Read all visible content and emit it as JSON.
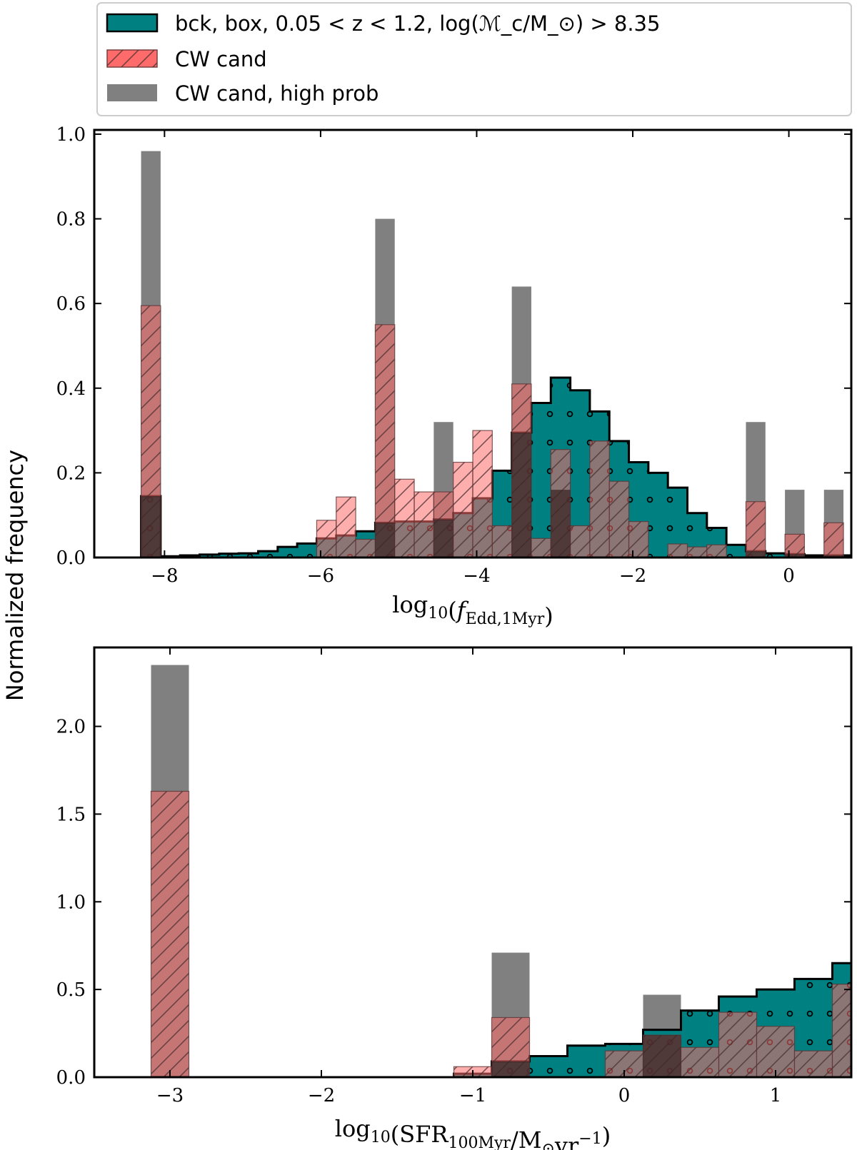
{
  "figure": {
    "ylabel": "Normalized frequency"
  },
  "legend": {
    "placement": "top",
    "entries": [
      {
        "label": "bck, box, 0.05 < z < 1.2, log(ℳ_c/M_⊙) > 8.35",
        "color": "#008080",
        "style": "filled-dots"
      },
      {
        "label": "CW cand",
        "color": "#ff6b6b",
        "style": "hatched"
      },
      {
        "label": "CW cand, high prob",
        "color": "#808080",
        "style": "solid"
      }
    ]
  },
  "colors": {
    "bck": "#008080",
    "cw": "#ff6b6b",
    "high": "#808080",
    "overlap_dark": "#3b2626"
  },
  "chart_data": [
    {
      "type": "bar",
      "xlabel": "log10(f_Edd,1Myr)",
      "xlim": [
        -8.9,
        0.8
      ],
      "ylim": [
        0,
        1.01
      ],
      "xticks": [
        -8,
        -6,
        -4,
        -2,
        0
      ],
      "xtick_labels": [
        "−8",
        "−6",
        "−4",
        "−2",
        "0"
      ],
      "yticks": [
        0.0,
        0.2,
        0.4,
        0.6,
        0.8,
        1.0
      ],
      "ytick_labels": [
        "0.0",
        "0.2",
        "0.4",
        "0.6",
        "0.8",
        "1.0"
      ],
      "bin_start": -8.3,
      "bin_width": 0.25,
      "series": [
        {
          "name": "bck, box, 0.05 < z < 1.2, log(ℳc/M⊙) > 8.35",
          "type": "step-filled",
          "values": [
            0.145,
            0.003,
            0.005,
            0.007,
            0.009,
            0.01,
            0.015,
            0.025,
            0.033,
            0.045,
            0.052,
            0.062,
            0.082,
            0.085,
            0.085,
            0.09,
            0.105,
            0.14,
            0.205,
            0.295,
            0.365,
            0.425,
            0.395,
            0.345,
            0.275,
            0.225,
            0.2,
            0.165,
            0.105,
            0.07,
            0.03,
            0.015,
            0.01,
            0.008,
            0.005,
            0.005,
            0.005
          ]
        },
        {
          "name": "CW cand",
          "type": "hatched",
          "values": [
            0.595,
            0,
            0,
            0,
            0,
            0,
            0,
            0,
            0,
            0.088,
            0.143,
            0.043,
            0.55,
            0.185,
            0.155,
            0.155,
            0.225,
            0.3,
            0.075,
            0.41,
            0.045,
            0.255,
            0.075,
            0.275,
            0.18,
            0.085,
            0,
            0.032,
            0.025,
            0.03,
            0,
            0.132,
            0,
            0.055,
            0,
            0.082,
            0
          ]
        },
        {
          "name": "CW cand, high prob",
          "type": "solid",
          "values": [
            0.96,
            0,
            0,
            0,
            0,
            0,
            0,
            0,
            0,
            0,
            0,
            0,
            0.8,
            0,
            0,
            0.32,
            0,
            0,
            0,
            0.64,
            0,
            0.16,
            0,
            0,
            0,
            0,
            0,
            0,
            0,
            0,
            0,
            0.32,
            0,
            0.16,
            0,
            0.16,
            0
          ]
        }
      ]
    },
    {
      "type": "bar",
      "xlabel": "log10(SFR_100Myr/M⊙yr−1)",
      "xlim": [
        -3.5,
        1.5
      ],
      "ylim": [
        0,
        2.45
      ],
      "xticks": [
        -3,
        -2,
        -1,
        0,
        1
      ],
      "xtick_labels": [
        "−3",
        "−2",
        "−1",
        "0",
        "1"
      ],
      "yticks": [
        0.0,
        0.5,
        1.0,
        1.5,
        2.0
      ],
      "ytick_labels": [
        "0.0",
        "0.5",
        "1.0",
        "1.5",
        "2.0"
      ],
      "bin_start": -3.125,
      "bin_width": 0.25,
      "series": [
        {
          "name": "bck, box, 0.05 < z < 1.2, log(ℳc/M⊙) > 8.35",
          "type": "step-filled",
          "values": [
            0,
            0,
            0,
            0,
            0,
            0,
            0,
            0,
            0.02,
            0.09,
            0.12,
            0.18,
            0.19,
            0.27,
            0.38,
            0.46,
            0.5,
            0.56,
            0.65,
            0.46,
            0.37
          ]
        },
        {
          "name": "CW cand",
          "type": "hatched",
          "values": [
            1.63,
            0,
            0,
            0,
            0,
            0,
            0,
            0,
            0.06,
            0.34,
            0,
            0,
            0.15,
            0.24,
            0.17,
            0.37,
            0.29,
            0.15,
            0.53,
            0.15,
            0.17
          ]
        },
        {
          "name": "CW cand, high prob",
          "type": "solid",
          "values": [
            2.35,
            0,
            0,
            0,
            0,
            0,
            0,
            0,
            0,
            0.71,
            0,
            0,
            0,
            0.47,
            0,
            0,
            0,
            0,
            0,
            0,
            0
          ]
        }
      ]
    }
  ]
}
